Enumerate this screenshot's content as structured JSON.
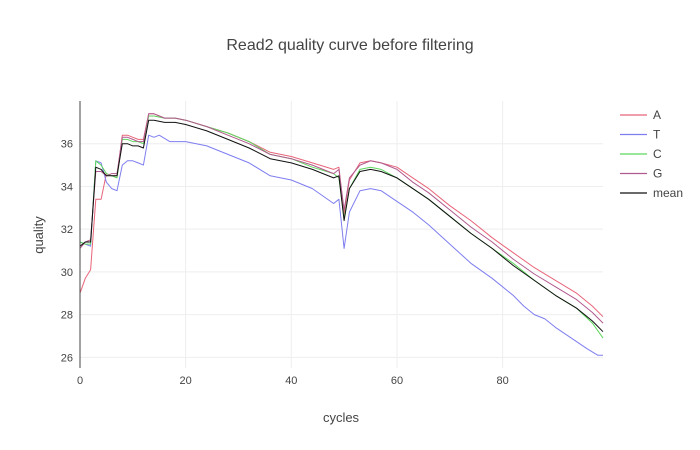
{
  "chart_data": {
    "type": "line",
    "title": "Read2 quality curve before filtering",
    "xlabel": "cycles",
    "ylabel": "quality",
    "xlim": [
      0,
      99
    ],
    "ylim": [
      25.5,
      38
    ],
    "xticks": [
      0,
      20,
      40,
      60,
      80
    ],
    "yticks": [
      26,
      28,
      30,
      32,
      34,
      36
    ],
    "grid": true,
    "legend_position": "right",
    "series": [
      {
        "name": "A",
        "color": "#e8657a",
        "points": [
          [
            0,
            29
          ],
          [
            1,
            29.7
          ],
          [
            2,
            30.1
          ],
          [
            3,
            33.4
          ],
          [
            4,
            33.4
          ],
          [
            5,
            34.6
          ],
          [
            6,
            34.5
          ],
          [
            7,
            34.5
          ],
          [
            8,
            36.4
          ],
          [
            9,
            36.4
          ],
          [
            10,
            36.3
          ],
          [
            11,
            36.2
          ],
          [
            12,
            36.2
          ],
          [
            13,
            37.4
          ],
          [
            14,
            37.4
          ],
          [
            16,
            37.2
          ],
          [
            18,
            37.2
          ],
          [
            20,
            37.1
          ],
          [
            24,
            36.8
          ],
          [
            28,
            36.5
          ],
          [
            32,
            36.1
          ],
          [
            36,
            35.6
          ],
          [
            40,
            35.4
          ],
          [
            44,
            35.1
          ],
          [
            48,
            34.8
          ],
          [
            49,
            34.9
          ],
          [
            50,
            32.7
          ],
          [
            51,
            34.3
          ],
          [
            53,
            35.1
          ],
          [
            55,
            35.2
          ],
          [
            57,
            35.1
          ],
          [
            60,
            34.9
          ],
          [
            63,
            34.4
          ],
          [
            66,
            33.9
          ],
          [
            70,
            33.1
          ],
          [
            74,
            32.4
          ],
          [
            78,
            31.6
          ],
          [
            82,
            30.9
          ],
          [
            86,
            30.2
          ],
          [
            90,
            29.6
          ],
          [
            94,
            29
          ],
          [
            97,
            28.4
          ],
          [
            99,
            27.9
          ]
        ]
      },
      {
        "name": "T",
        "color": "#7e7ef0",
        "points": [
          [
            0,
            31.4
          ],
          [
            1,
            31.3
          ],
          [
            2,
            31.2
          ],
          [
            3,
            35.2
          ],
          [
            4,
            35.1
          ],
          [
            5,
            34.2
          ],
          [
            6,
            33.9
          ],
          [
            7,
            33.8
          ],
          [
            8,
            35
          ],
          [
            9,
            35.2
          ],
          [
            10,
            35.2
          ],
          [
            11,
            35.1
          ],
          [
            12,
            35
          ],
          [
            13,
            36.4
          ],
          [
            14,
            36.3
          ],
          [
            15,
            36.4
          ],
          [
            17,
            36.1
          ],
          [
            20,
            36.1
          ],
          [
            24,
            35.9
          ],
          [
            28,
            35.5
          ],
          [
            32,
            35.1
          ],
          [
            36,
            34.5
          ],
          [
            40,
            34.3
          ],
          [
            44,
            33.9
          ],
          [
            48,
            33.2
          ],
          [
            49,
            33.4
          ],
          [
            50,
            31.1
          ],
          [
            51,
            32.8
          ],
          [
            53,
            33.8
          ],
          [
            55,
            33.9
          ],
          [
            57,
            33.8
          ],
          [
            60,
            33.3
          ],
          [
            63,
            32.8
          ],
          [
            66,
            32.2
          ],
          [
            70,
            31.3
          ],
          [
            74,
            30.4
          ],
          [
            78,
            29.7
          ],
          [
            82,
            28.9
          ],
          [
            84,
            28.4
          ],
          [
            86,
            28
          ],
          [
            88,
            27.8
          ],
          [
            90,
            27.4
          ],
          [
            93,
            26.9
          ],
          [
            96,
            26.4
          ],
          [
            98,
            26.1
          ],
          [
            99,
            26.1
          ]
        ]
      },
      {
        "name": "C",
        "color": "#5ed65e",
        "points": [
          [
            0,
            31.4
          ],
          [
            1,
            31.3
          ],
          [
            2,
            31.3
          ],
          [
            3,
            35.2
          ],
          [
            4,
            35
          ],
          [
            5,
            34.6
          ],
          [
            6,
            34.5
          ],
          [
            7,
            34.4
          ],
          [
            8,
            36.2
          ],
          [
            9,
            36.2
          ],
          [
            10,
            36.1
          ],
          [
            11,
            36.1
          ],
          [
            12,
            36
          ],
          [
            13,
            37.3
          ],
          [
            14,
            37.3
          ],
          [
            16,
            37.2
          ],
          [
            18,
            37.2
          ],
          [
            20,
            37.1
          ],
          [
            24,
            36.8
          ],
          [
            28,
            36.5
          ],
          [
            32,
            36.1
          ],
          [
            36,
            35.5
          ],
          [
            40,
            35.3
          ],
          [
            44,
            34.9
          ],
          [
            48,
            34.6
          ],
          [
            49,
            34.4
          ],
          [
            50,
            32.5
          ],
          [
            51,
            33.9
          ],
          [
            53,
            34.8
          ],
          [
            55,
            34.9
          ],
          [
            57,
            34.8
          ],
          [
            60,
            34.4
          ],
          [
            63,
            33.9
          ],
          [
            66,
            33.4
          ],
          [
            70,
            32.6
          ],
          [
            74,
            31.8
          ],
          [
            78,
            31.1
          ],
          [
            82,
            30.4
          ],
          [
            86,
            29.6
          ],
          [
            90,
            28.9
          ],
          [
            94,
            28.3
          ],
          [
            97,
            27.6
          ],
          [
            99,
            26.9
          ]
        ]
      },
      {
        "name": "G",
        "color": "#b05a8e",
        "points": [
          [
            0,
            31.1
          ],
          [
            1,
            31.4
          ],
          [
            2,
            31.5
          ],
          [
            3,
            34.7
          ],
          [
            4,
            34.7
          ],
          [
            5,
            34.5
          ],
          [
            6,
            34.6
          ],
          [
            7,
            34.6
          ],
          [
            8,
            36.3
          ],
          [
            9,
            36.3
          ],
          [
            10,
            36.2
          ],
          [
            11,
            36.1
          ],
          [
            12,
            36.1
          ],
          [
            13,
            37.4
          ],
          [
            14,
            37.4
          ],
          [
            16,
            37.2
          ],
          [
            18,
            37.2
          ],
          [
            20,
            37.1
          ],
          [
            24,
            36.8
          ],
          [
            28,
            36.4
          ],
          [
            32,
            36
          ],
          [
            36,
            35.5
          ],
          [
            40,
            35.3
          ],
          [
            44,
            35
          ],
          [
            48,
            34.6
          ],
          [
            49,
            34.8
          ],
          [
            50,
            32.9
          ],
          [
            51,
            34.4
          ],
          [
            53,
            35
          ],
          [
            55,
            35.2
          ],
          [
            57,
            35.1
          ],
          [
            60,
            34.8
          ],
          [
            63,
            34.2
          ],
          [
            66,
            33.7
          ],
          [
            70,
            32.9
          ],
          [
            74,
            32.1
          ],
          [
            78,
            31.4
          ],
          [
            82,
            30.6
          ],
          [
            86,
            29.9
          ],
          [
            90,
            29.3
          ],
          [
            94,
            28.7
          ],
          [
            97,
            28.1
          ],
          [
            99,
            27.6
          ]
        ]
      },
      {
        "name": "mean",
        "color": "#111111",
        "points": [
          [
            0,
            31.2
          ],
          [
            1,
            31.4
          ],
          [
            2,
            31.4
          ],
          [
            3,
            34.9
          ],
          [
            4,
            34.8
          ],
          [
            5,
            34.5
          ],
          [
            6,
            34.5
          ],
          [
            7,
            34.5
          ],
          [
            8,
            36
          ],
          [
            9,
            36
          ],
          [
            10,
            35.9
          ],
          [
            11,
            35.9
          ],
          [
            12,
            35.8
          ],
          [
            13,
            37.1
          ],
          [
            14,
            37.1
          ],
          [
            16,
            37
          ],
          [
            18,
            37
          ],
          [
            20,
            36.9
          ],
          [
            24,
            36.6
          ],
          [
            28,
            36.2
          ],
          [
            32,
            35.8
          ],
          [
            36,
            35.3
          ],
          [
            40,
            35.1
          ],
          [
            44,
            34.8
          ],
          [
            48,
            34.4
          ],
          [
            49,
            34.5
          ],
          [
            50,
            32.4
          ],
          [
            51,
            33.9
          ],
          [
            53,
            34.7
          ],
          [
            55,
            34.8
          ],
          [
            57,
            34.7
          ],
          [
            60,
            34.4
          ],
          [
            63,
            33.9
          ],
          [
            66,
            33.4
          ],
          [
            70,
            32.6
          ],
          [
            74,
            31.8
          ],
          [
            78,
            31.1
          ],
          [
            82,
            30.3
          ],
          [
            86,
            29.6
          ],
          [
            90,
            28.9
          ],
          [
            94,
            28.3
          ],
          [
            97,
            27.7
          ],
          [
            99,
            27.2
          ]
        ]
      }
    ]
  }
}
